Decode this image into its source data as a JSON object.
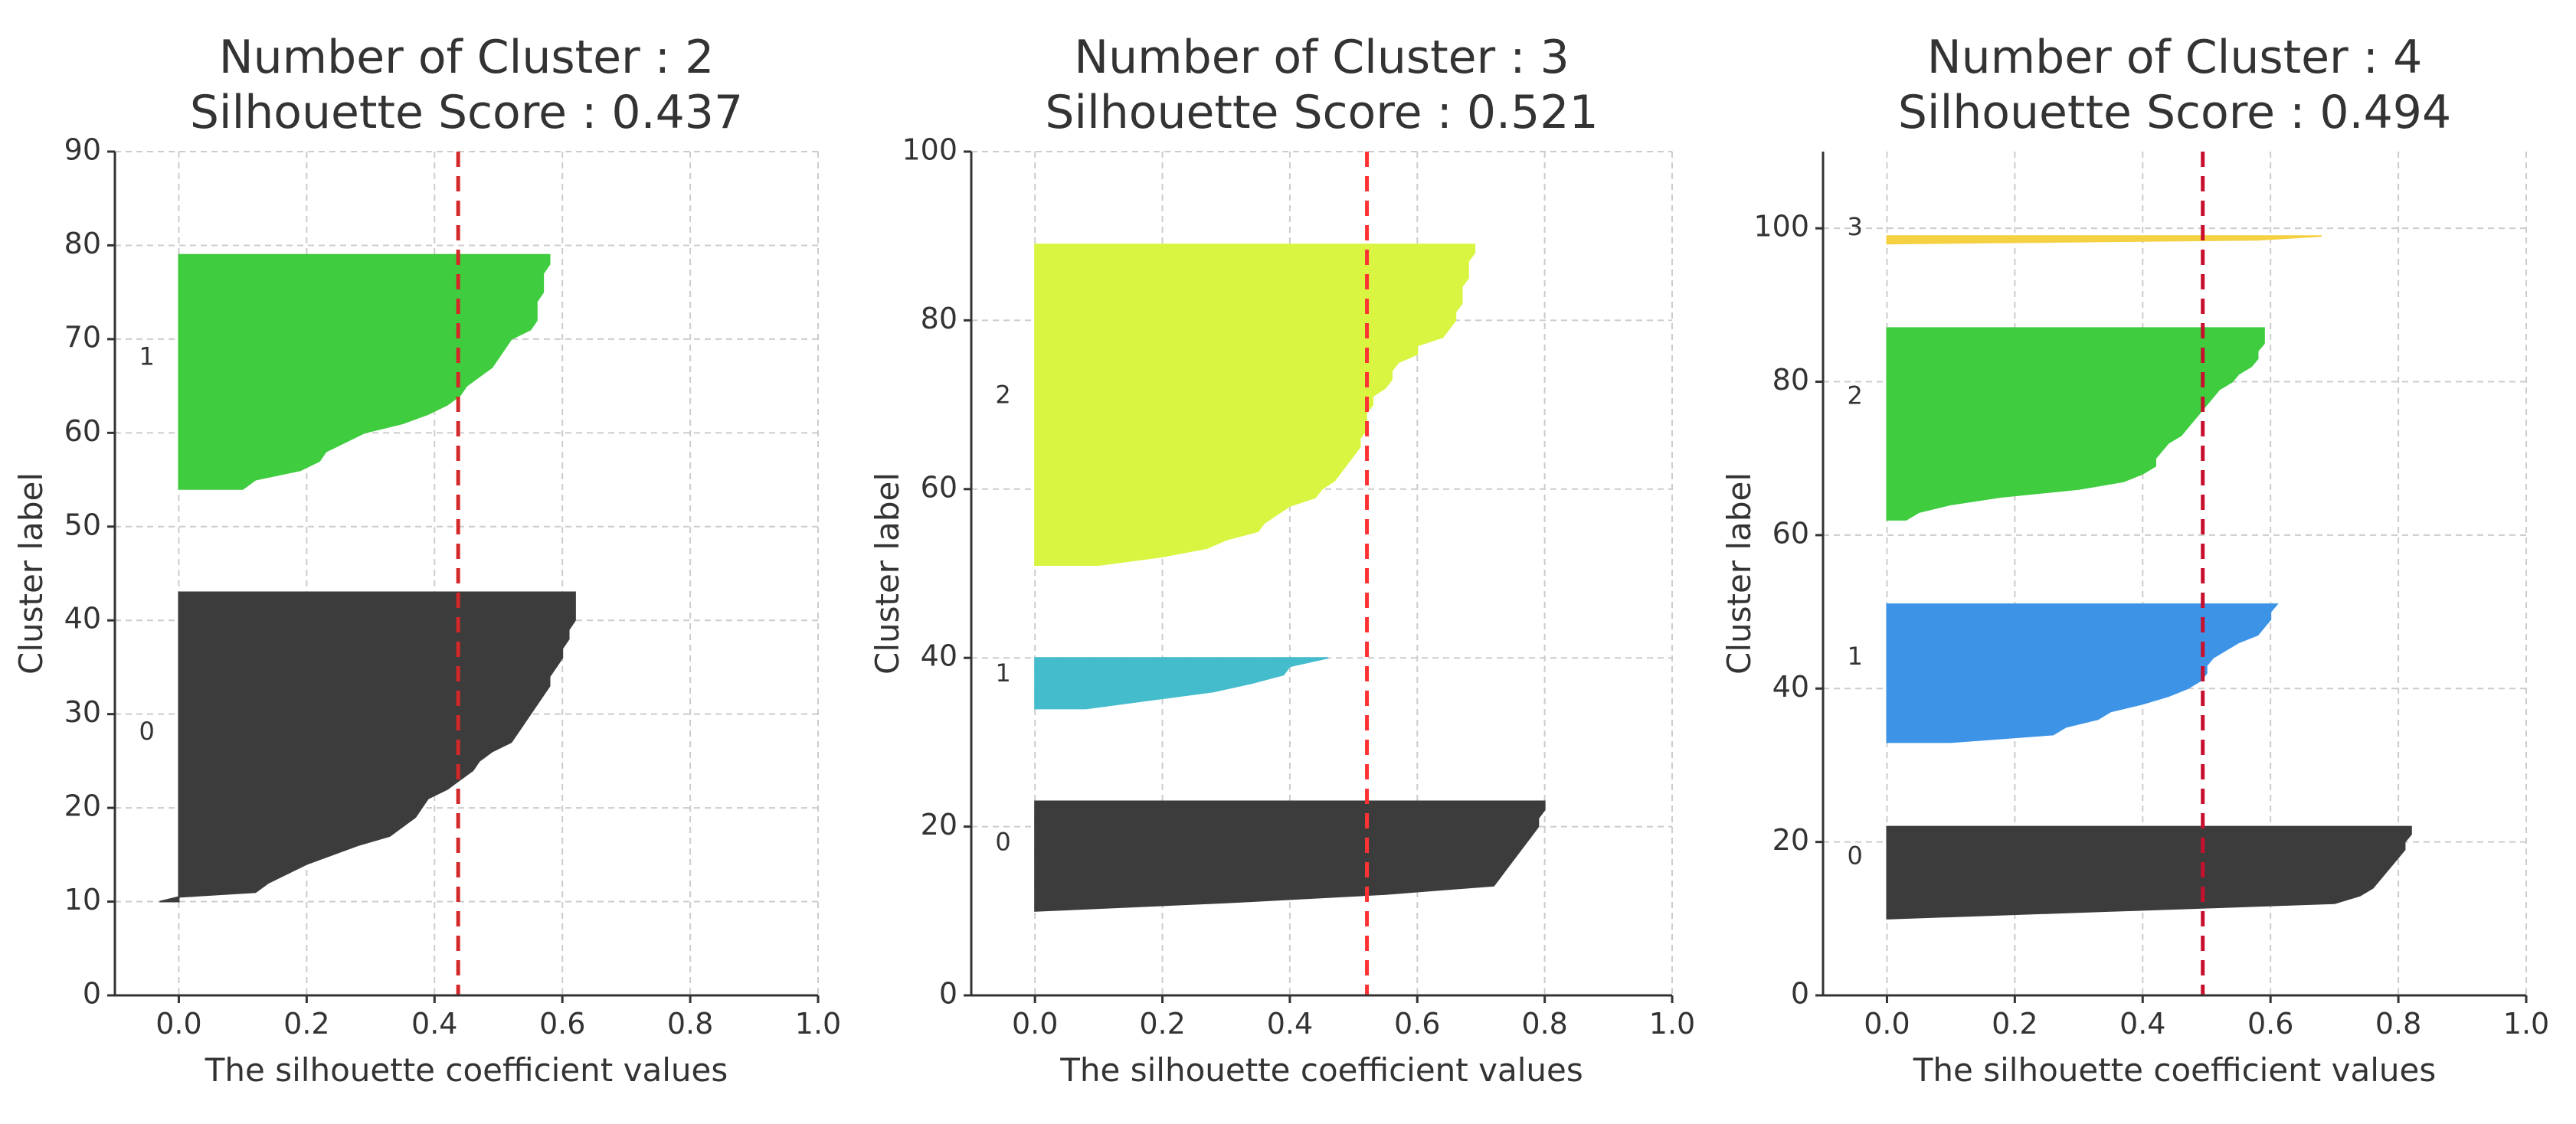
{
  "chart_data": [
    {
      "type": "area",
      "title": "Number of Cluster : 2\nSilhouette Score : 0.437",
      "title_lines": [
        "Number of Cluster : 2",
        "Silhouette Score : 0.437"
      ],
      "xlabel": "The silhouette coefficient values",
      "ylabel": "Cluster label",
      "xlim": [
        -0.1,
        1.0
      ],
      "ylim": [
        0,
        90
      ],
      "xticks": [
        0.0,
        0.2,
        0.4,
        0.6,
        0.8,
        1.0
      ],
      "xtick_labels": [
        "0.0",
        "0.2",
        "0.4",
        "0.6",
        "0.8",
        "1.0"
      ],
      "yticks": [
        0,
        10,
        20,
        30,
        40,
        50,
        60,
        70,
        80,
        90
      ],
      "ytick_labels": [
        "0",
        "10",
        "20",
        "30",
        "40",
        "50",
        "60",
        "70",
        "80",
        "90"
      ],
      "grid": true,
      "score_line": 0.437,
      "score_line_color": "#d62728",
      "clusters": [
        {
          "label": "0",
          "color": "#3c3c3c",
          "label_y": 28,
          "profile": [
            [
              10,
              -0.03
            ],
            [
              10.5,
              0.0
            ],
            [
              11,
              0.12
            ],
            [
              12,
              0.14
            ],
            [
              13,
              0.17
            ],
            [
              14,
              0.2
            ],
            [
              15,
              0.24
            ],
            [
              16,
              0.28
            ],
            [
              17,
              0.33
            ],
            [
              18,
              0.35
            ],
            [
              19,
              0.37
            ],
            [
              20,
              0.38
            ],
            [
              21,
              0.39
            ],
            [
              22,
              0.42
            ],
            [
              23,
              0.44
            ],
            [
              24,
              0.46
            ],
            [
              25,
              0.47
            ],
            [
              26,
              0.49
            ],
            [
              27,
              0.52
            ],
            [
              28,
              0.53
            ],
            [
              29,
              0.54
            ],
            [
              30,
              0.55
            ],
            [
              31,
              0.56
            ],
            [
              32,
              0.57
            ],
            [
              33,
              0.58
            ],
            [
              34,
              0.58
            ],
            [
              35,
              0.59
            ],
            [
              36,
              0.6
            ],
            [
              37,
              0.6
            ],
            [
              38,
              0.61
            ],
            [
              39,
              0.61
            ],
            [
              40,
              0.62
            ],
            [
              41,
              0.62
            ],
            [
              42,
              0.62
            ],
            [
              43,
              0.62
            ]
          ]
        },
        {
          "label": "1",
          "color": "#3fcc3f",
          "label_y": 68,
          "profile": [
            [
              54,
              0.0
            ],
            [
              54,
              0.1
            ],
            [
              55,
              0.12
            ],
            [
              56,
              0.19
            ],
            [
              57,
              0.22
            ],
            [
              58,
              0.23
            ],
            [
              59,
              0.26
            ],
            [
              60,
              0.29
            ],
            [
              61,
              0.35
            ],
            [
              62,
              0.39
            ],
            [
              63,
              0.42
            ],
            [
              64,
              0.44
            ],
            [
              65,
              0.45
            ],
            [
              66,
              0.47
            ],
            [
              67,
              0.49
            ],
            [
              68,
              0.5
            ],
            [
              69,
              0.51
            ],
            [
              70,
              0.52
            ],
            [
              71,
              0.55
            ],
            [
              72,
              0.56
            ],
            [
              73,
              0.56
            ],
            [
              74,
              0.56
            ],
            [
              75,
              0.57
            ],
            [
              76,
              0.57
            ],
            [
              77,
              0.57
            ],
            [
              78,
              0.58
            ],
            [
              79,
              0.58
            ]
          ]
        }
      ]
    },
    {
      "type": "area",
      "title": "Number of Cluster : 3\nSilhouette Score : 0.521",
      "title_lines": [
        "Number of Cluster : 3",
        "Silhouette Score : 0.521"
      ],
      "xlabel": "The silhouette coefficient values",
      "ylabel": "Cluster label",
      "xlim": [
        -0.1,
        1.0
      ],
      "ylim": [
        0,
        100
      ],
      "xticks": [
        0.0,
        0.2,
        0.4,
        0.6,
        0.8,
        1.0
      ],
      "xtick_labels": [
        "0.0",
        "0.2",
        "0.4",
        "0.6",
        "0.8",
        "1.0"
      ],
      "yticks": [
        0,
        20,
        40,
        60,
        80,
        100
      ],
      "ytick_labels": [
        "0",
        "20",
        "40",
        "60",
        "80",
        "100"
      ],
      "grid": true,
      "score_line": 0.521,
      "score_line_color": "#ff3333",
      "clusters": [
        {
          "label": "0",
          "color": "#3c3c3c",
          "label_y": 18,
          "profile": [
            [
              10,
              0.0
            ],
            [
              11,
              0.3
            ],
            [
              12,
              0.55
            ],
            [
              13,
              0.72
            ],
            [
              14,
              0.73
            ],
            [
              15,
              0.74
            ],
            [
              16,
              0.75
            ],
            [
              17,
              0.76
            ],
            [
              18,
              0.77
            ],
            [
              19,
              0.78
            ],
            [
              20,
              0.79
            ],
            [
              21,
              0.79
            ],
            [
              22,
              0.8
            ],
            [
              23,
              0.8
            ]
          ]
        },
        {
          "label": "1",
          "color": "#44bccc",
          "label_y": 38,
          "profile": [
            [
              34,
              0.0
            ],
            [
              34,
              0.08
            ],
            [
              35,
              0.18
            ],
            [
              36,
              0.28
            ],
            [
              37,
              0.34
            ],
            [
              38,
              0.39
            ],
            [
              39,
              0.4
            ],
            [
              40,
              0.46
            ]
          ]
        },
        {
          "label": "2",
          "color": "#d9f542",
          "label_y": 71,
          "profile": [
            [
              51,
              0.0
            ],
            [
              51,
              0.1
            ],
            [
              52,
              0.2
            ],
            [
              53,
              0.27
            ],
            [
              54,
              0.3
            ],
            [
              55,
              0.35
            ],
            [
              56,
              0.36
            ],
            [
              57,
              0.38
            ],
            [
              58,
              0.4
            ],
            [
              59,
              0.44
            ],
            [
              60,
              0.45
            ],
            [
              61,
              0.47
            ],
            [
              62,
              0.48
            ],
            [
              63,
              0.49
            ],
            [
              64,
              0.5
            ],
            [
              65,
              0.51
            ],
            [
              66,
              0.51
            ],
            [
              67,
              0.52
            ],
            [
              68,
              0.52
            ],
            [
              69,
              0.52
            ],
            [
              70,
              0.53
            ],
            [
              71,
              0.53
            ],
            [
              72,
              0.55
            ],
            [
              73,
              0.56
            ],
            [
              74,
              0.56
            ],
            [
              75,
              0.57
            ],
            [
              76,
              0.6
            ],
            [
              77,
              0.6
            ],
            [
              78,
              0.64
            ],
            [
              79,
              0.65
            ],
            [
              80,
              0.66
            ],
            [
              81,
              0.66
            ],
            [
              82,
              0.67
            ],
            [
              83,
              0.67
            ],
            [
              84,
              0.67
            ],
            [
              85,
              0.68
            ],
            [
              86,
              0.68
            ],
            [
              87,
              0.68
            ],
            [
              88,
              0.69
            ],
            [
              89,
              0.69
            ]
          ]
        }
      ]
    },
    {
      "type": "area",
      "title": "Number of Cluster : 4\nSilhouette Score : 0.494",
      "title_lines": [
        "Number of Cluster : 4",
        "Silhouette Score : 0.494"
      ],
      "xlabel": "The silhouette coefficient values",
      "ylabel": "Cluster label",
      "xlim": [
        -0.1,
        1.0
      ],
      "ylim": [
        0,
        110
      ],
      "xticks": [
        0.0,
        0.2,
        0.4,
        0.6,
        0.8,
        1.0
      ],
      "xtick_labels": [
        "0.0",
        "0.2",
        "0.4",
        "0.6",
        "0.8",
        "1.0"
      ],
      "yticks": [
        0,
        20,
        40,
        60,
        80,
        100
      ],
      "ytick_labels": [
        "0",
        "20",
        "40",
        "60",
        "80",
        "100"
      ],
      "grid": true,
      "score_line": 0.494,
      "score_line_color": "#c8102e",
      "clusters": [
        {
          "label": "0",
          "color": "#3c3c3c",
          "label_y": 18,
          "profile": [
            [
              10,
              0.0
            ],
            [
              11,
              0.35
            ],
            [
              12,
              0.7
            ],
            [
              13,
              0.74
            ],
            [
              14,
              0.76
            ],
            [
              15,
              0.77
            ],
            [
              16,
              0.78
            ],
            [
              17,
              0.79
            ],
            [
              18,
              0.8
            ],
            [
              19,
              0.81
            ],
            [
              20,
              0.81
            ],
            [
              21,
              0.82
            ],
            [
              22,
              0.82
            ]
          ]
        },
        {
          "label": "1",
          "color": "#3d94e6",
          "label_y": 44,
          "profile": [
            [
              33,
              0.0
            ],
            [
              33,
              0.1
            ],
            [
              34,
              0.26
            ],
            [
              35,
              0.28
            ],
            [
              36,
              0.33
            ],
            [
              37,
              0.35
            ],
            [
              38,
              0.4
            ],
            [
              39,
              0.44
            ],
            [
              40,
              0.47
            ],
            [
              41,
              0.49
            ],
            [
              42,
              0.5
            ],
            [
              43,
              0.5
            ],
            [
              44,
              0.51
            ],
            [
              45,
              0.53
            ],
            [
              46,
              0.55
            ],
            [
              47,
              0.58
            ],
            [
              48,
              0.59
            ],
            [
              49,
              0.6
            ],
            [
              50,
              0.6
            ],
            [
              51,
              0.61
            ]
          ]
        },
        {
          "label": "2",
          "color": "#3fcc3f",
          "label_y": 78,
          "profile": [
            [
              62,
              0.0
            ],
            [
              62,
              0.03
            ],
            [
              63,
              0.05
            ],
            [
              64,
              0.1
            ],
            [
              65,
              0.18
            ],
            [
              66,
              0.3
            ],
            [
              67,
              0.37
            ],
            [
              68,
              0.4
            ],
            [
              69,
              0.42
            ],
            [
              70,
              0.42
            ],
            [
              71,
              0.43
            ],
            [
              72,
              0.44
            ],
            [
              73,
              0.46
            ],
            [
              74,
              0.47
            ],
            [
              75,
              0.48
            ],
            [
              76,
              0.49
            ],
            [
              77,
              0.5
            ],
            [
              78,
              0.51
            ],
            [
              79,
              0.52
            ],
            [
              80,
              0.54
            ],
            [
              81,
              0.55
            ],
            [
              82,
              0.57
            ],
            [
              83,
              0.58
            ],
            [
              84,
              0.58
            ],
            [
              85,
              0.59
            ],
            [
              86,
              0.59
            ],
            [
              87,
              0.59
            ]
          ]
        },
        {
          "label": "3",
          "color": "#f5d142",
          "label_y": 100,
          "profile": [
            [
              98,
              0.0
            ],
            [
              98.5,
              0.58
            ],
            [
              99,
              0.68
            ]
          ]
        }
      ]
    }
  ]
}
